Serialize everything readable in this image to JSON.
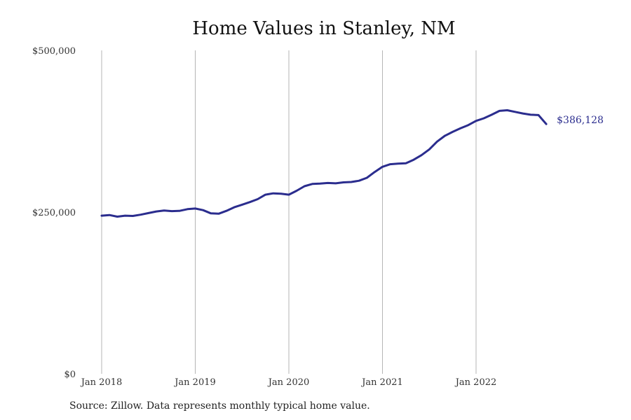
{
  "chart_data": {
    "type": "line",
    "title": "Home Values in Stanley, NM",
    "source": "Source: Zillow. Data represents monthly typical home value.",
    "ylim": [
      0,
      500000
    ],
    "y_ticks": [
      {
        "value": 0,
        "label": "$0"
      },
      {
        "value": 250000,
        "label": "$250,000"
      },
      {
        "value": 500000,
        "label": "$500,000"
      }
    ],
    "x_ticks": [
      "Jan 2018",
      "Jan 2019",
      "Jan 2020",
      "Jan 2021",
      "Jan 2022"
    ],
    "grid": "vertical",
    "line_color": "#2b2d8e",
    "end_label": "$386,128",
    "series": [
      {
        "x": [
          "2018-01",
          "2018-02",
          "2018-03",
          "2018-04",
          "2018-05",
          "2018-06",
          "2018-07",
          "2018-08",
          "2018-09",
          "2018-10",
          "2018-11",
          "2018-12",
          "2019-01",
          "2019-02",
          "2019-03",
          "2019-04",
          "2019-05",
          "2019-06",
          "2019-07",
          "2019-08",
          "2019-09",
          "2019-10",
          "2019-11",
          "2019-12",
          "2020-01",
          "2020-02",
          "2020-03",
          "2020-04",
          "2020-05",
          "2020-06",
          "2020-07",
          "2020-08",
          "2020-09",
          "2020-10",
          "2020-11",
          "2020-12",
          "2021-01",
          "2021-02",
          "2021-03",
          "2021-04",
          "2021-05",
          "2021-06",
          "2021-07",
          "2021-08",
          "2021-09",
          "2021-10",
          "2021-11",
          "2021-12",
          "2022-01",
          "2022-02",
          "2022-03",
          "2022-04",
          "2022-05",
          "2022-06",
          "2022-07",
          "2022-08",
          "2022-09",
          "2022-10"
        ],
        "values": [
          244500,
          245500,
          243000,
          244500,
          244000,
          246000,
          248500,
          251000,
          252500,
          251500,
          252000,
          254500,
          255500,
          253000,
          248000,
          247500,
          252000,
          257500,
          261500,
          265500,
          270000,
          277000,
          279000,
          278500,
          277000,
          283000,
          290000,
          293500,
          294000,
          295000,
          294500,
          296000,
          296500,
          298500,
          303000,
          312000,
          320000,
          324000,
          325000,
          325500,
          331000,
          338000,
          347000,
          359000,
          368000,
          374000,
          379500,
          384500,
          391000,
          395000,
          400500,
          406500,
          407500,
          405000,
          402500,
          400500,
          400000,
          386128
        ]
      }
    ]
  }
}
